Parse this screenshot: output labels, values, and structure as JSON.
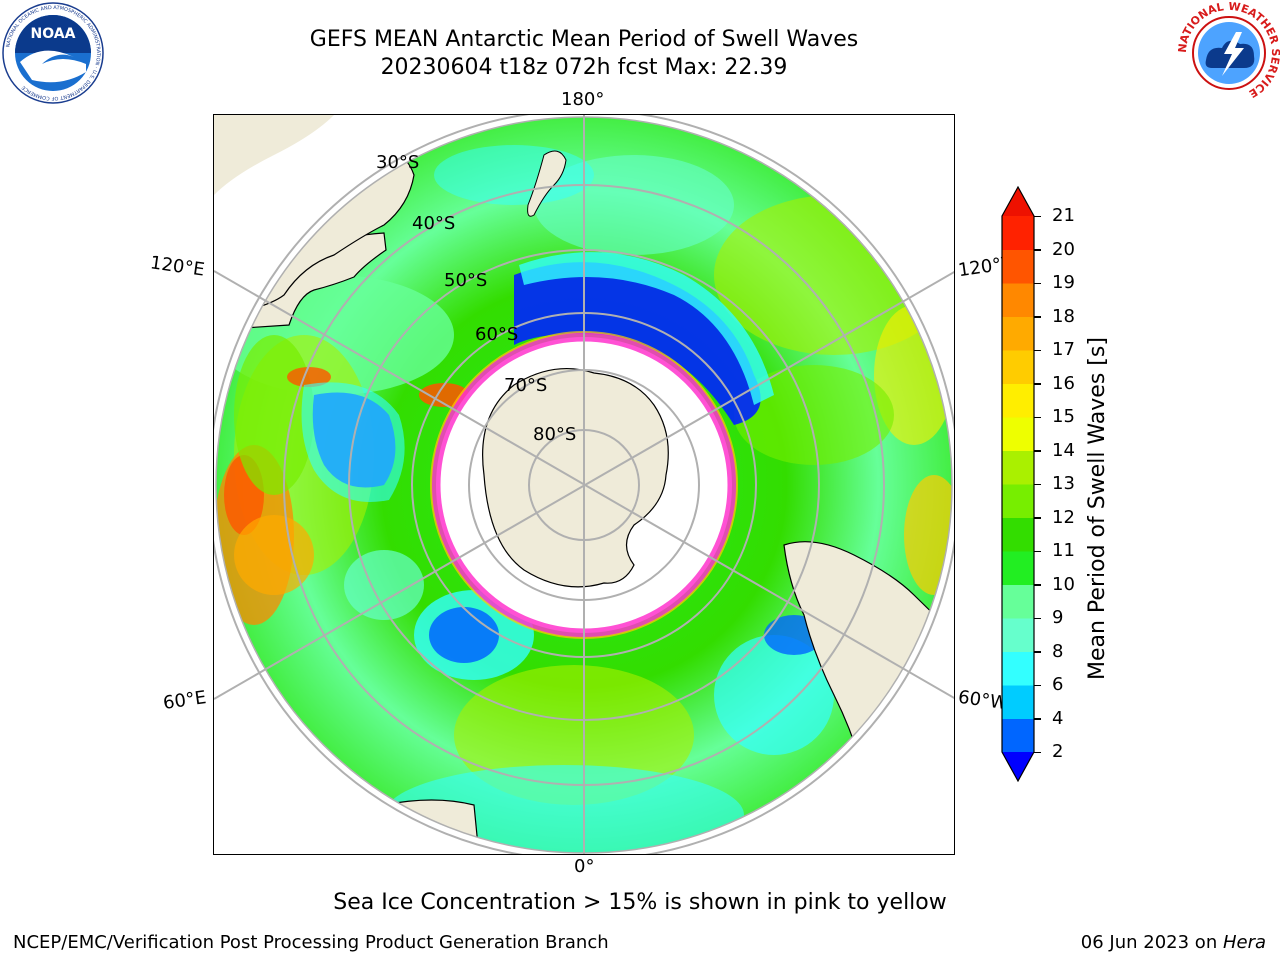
{
  "title": {
    "line1": "GEFS MEAN Antarctic Mean Period of Swell Waves",
    "line2": "20230604 t18z 072h fcst   Max: 22.39"
  },
  "logos": {
    "left": {
      "icon": "noaa-logo",
      "text": "NOAA",
      "ring_text": "NATIONAL OCEANIC AND ATMOSPHERIC ADMINISTRATION · U.S. DEPARTMENT OF COMMERCE"
    },
    "right": {
      "icon": "nws-logo",
      "ring_text": "NATIONAL WEATHER SERVICE"
    }
  },
  "map": {
    "projection": "south-polar-stereographic",
    "longitude_labels": {
      "top": "180°",
      "bottom": "0°",
      "upper_left": "120°E",
      "lower_left": "60°E",
      "upper_right": "120°W",
      "lower_right": "60°W"
    },
    "latitude_labels": [
      "30°S",
      "40°S",
      "50°S",
      "60°S",
      "70°S",
      "80°S"
    ],
    "colors": {
      "land": "#efebd9",
      "ice_free": "#ffffff",
      "grid": "#b0b0b0",
      "coast": "#000000",
      "ice_edge": "#ff33cc"
    }
  },
  "colorbar": {
    "label": "Mean Period of Swell Waves [s]",
    "ticks": [
      "2",
      "4",
      "6",
      "8",
      "9",
      "10",
      "11",
      "12",
      "13",
      "14",
      "15",
      "16",
      "17",
      "18",
      "19",
      "20",
      "21"
    ],
    "colors": [
      "#0022ff",
      "#0066ff",
      "#00ccff",
      "#33ffff",
      "#66ffcc",
      "#66ff99",
      "#22ee22",
      "#33dd00",
      "#77ee00",
      "#aaf000",
      "#eeff00",
      "#ffee00",
      "#ffcc00",
      "#ffaa00",
      "#ff8800",
      "#ff5500",
      "#ff2200"
    ],
    "under_color": "#0000ff",
    "over_color": "#ee1100"
  },
  "footer": {
    "note": "Sea Ice Concentration > 15% is shown in pink to yellow",
    "credit_left": "NCEP/EMC/Verification Post Processing Product Generation Branch",
    "credit_date": "06 Jun 2023 on ",
    "credit_system": "Hera"
  }
}
